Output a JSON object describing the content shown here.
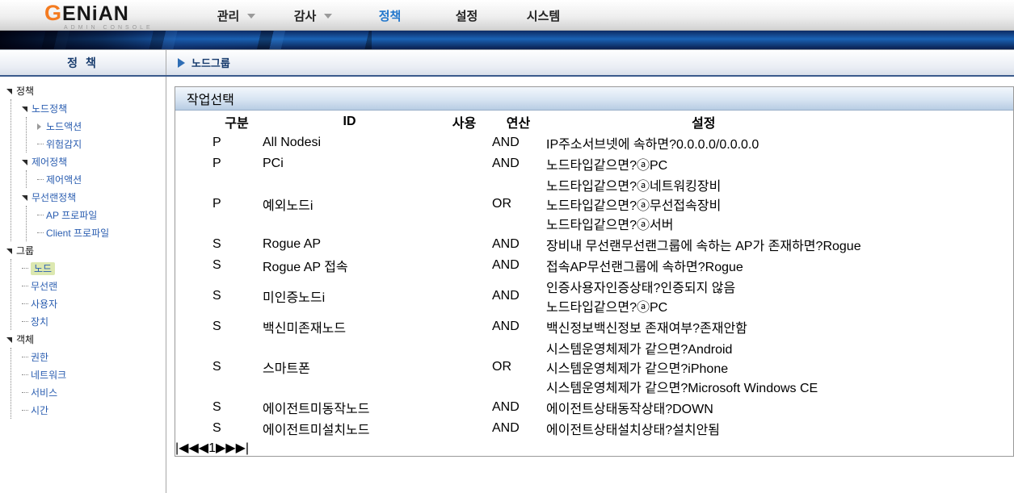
{
  "brand": {
    "logo_g": "G",
    "logo_rest": "ENiAN",
    "logo_sub": "ADMIN CONSOLE"
  },
  "nav": {
    "items": [
      {
        "label": "관리",
        "arrow": true,
        "active": false
      },
      {
        "label": "감사",
        "arrow": true,
        "active": false
      },
      {
        "label": "정책",
        "arrow": false,
        "active": true
      },
      {
        "label": "설정",
        "arrow": false,
        "active": false
      },
      {
        "label": "시스템",
        "arrow": false,
        "active": false
      }
    ]
  },
  "subheader": {
    "left_title": "정 책",
    "page_title": "노드그룹"
  },
  "sidebar": {
    "tree": [
      {
        "label": "정책",
        "root": true,
        "expander": "open",
        "children": [
          {
            "label": "노드정책",
            "expander": "open",
            "children": [
              {
                "label": "노드액션",
                "expander": "closed"
              },
              {
                "label": "위험감지"
              }
            ]
          },
          {
            "label": "제어정책",
            "expander": "open",
            "children": [
              {
                "label": "제어액션"
              }
            ]
          },
          {
            "label": "무선랜정책",
            "expander": "open",
            "children": [
              {
                "label": "AP 프로파일"
              },
              {
                "label": "Client 프로파일"
              }
            ]
          }
        ]
      },
      {
        "label": "그룹",
        "root": true,
        "expander": "open",
        "children": [
          {
            "label": "노드",
            "selected": true
          },
          {
            "label": "무선랜"
          },
          {
            "label": "사용자"
          },
          {
            "label": "장치"
          }
        ]
      },
      {
        "label": "객체",
        "root": true,
        "expander": "open",
        "children": [
          {
            "label": "권한"
          },
          {
            "label": "네트워크"
          },
          {
            "label": "서비스"
          },
          {
            "label": "시간"
          }
        ]
      }
    ]
  },
  "toolbar": {
    "action_button": "작업선택"
  },
  "table": {
    "headers": {
      "type": "구분",
      "id": "ID",
      "use": "사용",
      "op": "연산",
      "settings": "설정"
    },
    "rows": [
      {
        "icon": "P",
        "id": "All Nodes",
        "info": true,
        "checked": true,
        "op": "AND",
        "conds": [
          {
            "name": "IP주소",
            "cond": "서브넷에 속하면",
            "help": true,
            "value": "0.0.0.0/0.0.0.0"
          }
        ]
      },
      {
        "icon": "P",
        "id": "PC",
        "info": true,
        "checked": true,
        "op": "AND",
        "conds": [
          {
            "name": "노드타입",
            "cond": "같으면",
            "help": true,
            "value": "ⓐPC"
          }
        ]
      },
      {
        "icon": "P",
        "id": "예외노드",
        "info": true,
        "checked": true,
        "op": "OR",
        "conds": [
          {
            "name": "노드타입",
            "cond": "같으면",
            "help": true,
            "value": "ⓐ네트워킹장비"
          },
          {
            "name": "노드타입",
            "cond": "같으면",
            "help": true,
            "value": "ⓐ무선접속장비"
          },
          {
            "name": "노드타입",
            "cond": "같으면",
            "help": true,
            "value": "ⓐ서버"
          }
        ]
      },
      {
        "icon": "S",
        "id": "Rogue AP",
        "info": false,
        "checked": true,
        "op": "AND",
        "conds": [
          {
            "name": "장비내 무선랜",
            "cond": "무선랜그룹에 속하는 AP가 존재하면",
            "help": true,
            "value": "Rogue"
          }
        ]
      },
      {
        "icon": "S",
        "id": "Rogue AP 접속",
        "info": false,
        "checked": true,
        "op": "AND",
        "conds": [
          {
            "name": "접속AP",
            "cond": "무선랜그룹에 속하면",
            "help": true,
            "value": "Rogue"
          }
        ]
      },
      {
        "icon": "S",
        "id": "미인증노드",
        "info": true,
        "checked": true,
        "op": "AND",
        "conds": [
          {
            "name": "인증사용자",
            "cond": "인증상태",
            "help": true,
            "value": "인증되지 않음"
          },
          {
            "name": "노드타입",
            "cond": "같으면",
            "help": true,
            "value": "ⓐPC"
          }
        ]
      },
      {
        "icon": "S",
        "id": "백신미존재노드",
        "info": false,
        "checked": true,
        "op": "AND",
        "conds": [
          {
            "name": "백신정보",
            "cond": "백신정보 존재여부",
            "help": true,
            "value": "존재안함"
          }
        ]
      },
      {
        "icon": "S",
        "id": "스마트폰",
        "info": false,
        "checked": true,
        "op": "OR",
        "conds": [
          {
            "name": "시스템",
            "cond": "운영체제가 같으면",
            "help": true,
            "value": "Android"
          },
          {
            "name": "시스템",
            "cond": "운영체제가 같으면",
            "help": true,
            "value": "iPhone"
          },
          {
            "name": "시스템",
            "cond": "운영체제가 같으면",
            "help": true,
            "value": "Microsoft Windows CE"
          }
        ]
      },
      {
        "icon": "S",
        "id": "에이전트미동작노드",
        "info": false,
        "checked": true,
        "op": "AND",
        "conds": [
          {
            "name": "에이전트상태",
            "cond": "동작상태",
            "help": true,
            "value": "DOWN"
          }
        ]
      },
      {
        "icon": "S",
        "id": "에이전트미설치노드",
        "info": false,
        "checked": true,
        "op": "AND",
        "conds": [
          {
            "name": "에이전트상태",
            "cond": "설치상태",
            "help": true,
            "value": "설치안됨"
          }
        ]
      }
    ]
  },
  "pagination": {
    "first": "|◀",
    "prev": "◀◀",
    "current": "1",
    "next": "▶▶",
    "last": "▶|"
  },
  "colors": {
    "accent_blue": "#2277cc",
    "navy_title": "#173b6d",
    "link_blue": "#2a5db0",
    "selected_green": "#dce8b0",
    "logo_orange": "#f47b20"
  }
}
